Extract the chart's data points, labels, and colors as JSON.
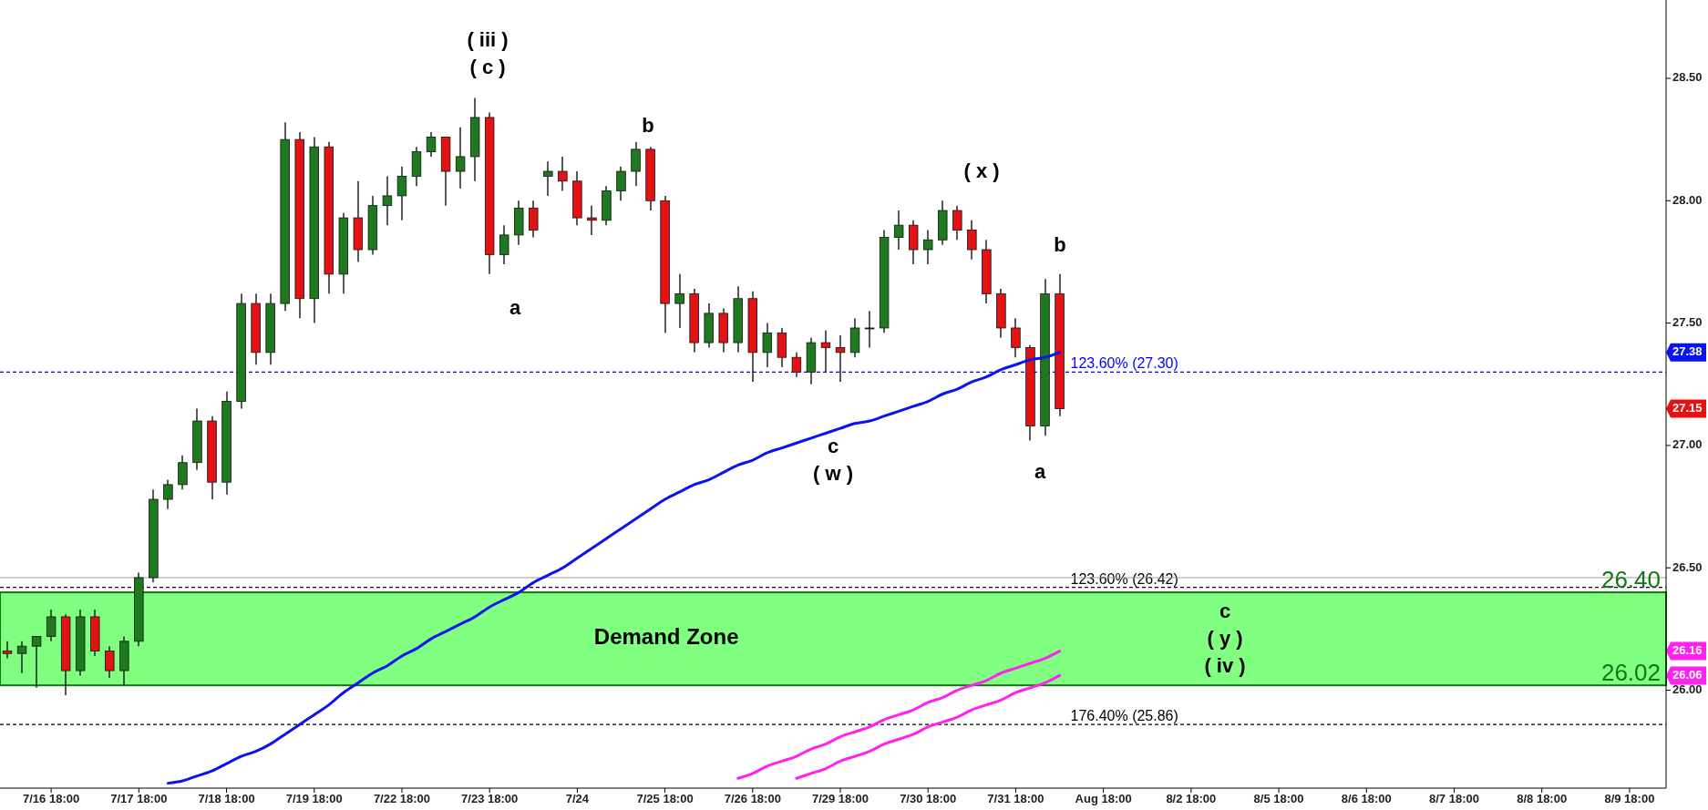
{
  "chart_data": {
    "type": "candlestick",
    "categories": [
      null,
      null,
      null,
      "7/16 18:00",
      null,
      null,
      null,
      null,
      null,
      "7/17 18:00",
      null,
      null,
      null,
      null,
      null,
      "7/18 18:00",
      null,
      null,
      null,
      null,
      null,
      "7/19 18:00",
      null,
      null,
      null,
      null,
      null,
      "7/22 18:00",
      null,
      null,
      null,
      null,
      null,
      "7/23 18:00",
      null,
      null,
      null,
      null,
      null,
      "7/24",
      null,
      null,
      null,
      null,
      null,
      "7/25 18:00",
      null,
      null,
      null,
      null,
      null,
      "7/26 18:00",
      null,
      null,
      null,
      null,
      null,
      "7/29 18:00",
      null,
      null,
      null,
      null,
      null,
      "7/30 18:00",
      null,
      null,
      null,
      null,
      null,
      "7/31 18:00",
      null,
      null,
      null,
      null,
      null,
      "Aug 18:00",
      null,
      null,
      null,
      null,
      null,
      "8/2 18:00",
      null,
      null,
      null,
      null,
      null,
      "8/5 18:00",
      null,
      null,
      null,
      null,
      null,
      "8/6 18:00",
      null,
      null,
      null,
      null,
      null,
      "8/7 18:00",
      null,
      null,
      null,
      null,
      null,
      "8/8 18:00",
      null,
      null,
      null,
      null,
      null,
      "8/9 18:00",
      null,
      null
    ],
    "ohlc": [
      [
        26.16,
        26.2,
        26.13,
        26.15
      ],
      [
        26.15,
        26.2,
        26.07,
        26.18
      ],
      [
        26.18,
        26.22,
        26.01,
        26.22
      ],
      [
        26.22,
        26.33,
        26.2,
        26.3
      ],
      [
        26.3,
        26.31,
        25.98,
        26.08
      ],
      [
        26.08,
        26.33,
        26.06,
        26.3
      ],
      [
        26.3,
        26.33,
        26.14,
        26.16
      ],
      [
        26.16,
        26.18,
        26.05,
        26.08
      ],
      [
        26.08,
        26.22,
        26.02,
        26.2
      ],
      [
        26.2,
        26.48,
        26.18,
        26.46
      ],
      [
        26.46,
        26.82,
        26.44,
        26.78
      ],
      [
        26.78,
        26.86,
        26.74,
        26.84
      ],
      [
        26.84,
        26.96,
        26.82,
        26.93
      ],
      [
        26.93,
        27.15,
        26.9,
        27.1
      ],
      [
        27.1,
        27.12,
        26.78,
        26.85
      ],
      [
        26.85,
        27.22,
        26.8,
        27.18
      ],
      [
        27.18,
        27.62,
        27.15,
        27.58
      ],
      [
        27.58,
        27.62,
        27.33,
        27.38
      ],
      [
        27.38,
        27.62,
        27.33,
        27.58
      ],
      [
        27.58,
        28.32,
        27.55,
        28.25
      ],
      [
        28.25,
        28.28,
        27.52,
        27.6
      ],
      [
        27.6,
        28.26,
        27.5,
        28.22
      ],
      [
        28.22,
        28.24,
        27.62,
        27.7
      ],
      [
        27.7,
        27.95,
        27.62,
        27.93
      ],
      [
        27.93,
        28.08,
        27.75,
        27.8
      ],
      [
        27.8,
        28.02,
        27.78,
        27.98
      ],
      [
        27.98,
        28.1,
        27.9,
        28.02
      ],
      [
        28.02,
        28.14,
        27.92,
        28.1
      ],
      [
        28.1,
        28.22,
        28.06,
        28.2
      ],
      [
        28.2,
        28.28,
        28.18,
        28.26
      ],
      [
        28.26,
        28.26,
        27.98,
        28.12
      ],
      [
        28.12,
        28.3,
        28.05,
        28.18
      ],
      [
        28.18,
        28.42,
        28.08,
        28.34
      ],
      [
        28.34,
        28.36,
        27.7,
        27.78
      ],
      [
        27.78,
        27.9,
        27.74,
        27.86
      ],
      [
        27.86,
        28.0,
        27.82,
        27.97
      ],
      [
        27.97,
        28.0,
        27.85,
        27.88
      ],
      [
        28.1,
        28.16,
        28.02,
        28.12
      ],
      [
        28.12,
        28.18,
        28.04,
        28.08
      ],
      [
        28.08,
        28.12,
        27.9,
        27.93
      ],
      [
        27.93,
        27.98,
        27.86,
        27.92
      ],
      [
        27.92,
        28.06,
        27.9,
        28.04
      ],
      [
        28.04,
        28.14,
        28.0,
        28.12
      ],
      [
        28.12,
        28.24,
        28.06,
        28.21
      ],
      [
        28.21,
        28.22,
        27.96,
        28.0
      ],
      [
        28.0,
        28.02,
        27.46,
        27.58
      ],
      [
        27.58,
        27.7,
        27.48,
        27.62
      ],
      [
        27.62,
        27.64,
        27.38,
        27.42
      ],
      [
        27.42,
        27.58,
        27.4,
        27.54
      ],
      [
        27.54,
        27.56,
        27.38,
        27.42
      ],
      [
        27.42,
        27.65,
        27.38,
        27.6
      ],
      [
        27.6,
        27.63,
        27.26,
        27.38
      ],
      [
        27.38,
        27.5,
        27.32,
        27.46
      ],
      [
        27.46,
        27.48,
        27.32,
        27.36
      ],
      [
        27.36,
        27.38,
        27.28,
        27.3
      ],
      [
        27.3,
        27.44,
        27.25,
        27.42
      ],
      [
        27.42,
        27.47,
        27.3,
        27.4
      ],
      [
        27.4,
        27.45,
        27.26,
        27.38
      ],
      [
        27.38,
        27.52,
        27.36,
        27.48
      ],
      [
        27.48,
        27.55,
        27.4,
        27.48
      ],
      [
        27.48,
        27.88,
        27.46,
        27.85
      ],
      [
        27.85,
        27.96,
        27.8,
        27.9
      ],
      [
        27.9,
        27.92,
        27.74,
        27.8
      ],
      [
        27.8,
        27.88,
        27.74,
        27.84
      ],
      [
        27.84,
        28.0,
        27.82,
        27.96
      ],
      [
        27.96,
        27.98,
        27.84,
        27.88
      ],
      [
        27.88,
        27.92,
        27.76,
        27.8
      ],
      [
        27.8,
        27.84,
        27.58,
        27.62
      ],
      [
        27.62,
        27.64,
        27.44,
        27.48
      ],
      [
        27.48,
        27.52,
        27.36,
        27.4
      ],
      [
        27.4,
        27.41,
        27.02,
        27.08
      ],
      [
        27.08,
        27.68,
        27.04,
        27.62
      ],
      [
        27.62,
        27.7,
        27.12,
        27.15
      ],
      null,
      null,
      null,
      null,
      null,
      null,
      null,
      null,
      null,
      null,
      null,
      null,
      null,
      null,
      null,
      null,
      null,
      null,
      null,
      null,
      null,
      null,
      null,
      null,
      null,
      null,
      null,
      null,
      null,
      null,
      null,
      null,
      null,
      null,
      null,
      null,
      null,
      null,
      null,
      null,
      null
    ],
    "series": [
      {
        "type": "line",
        "color": "#0a14f0",
        "values": [
          null,
          null,
          null,
          null,
          null,
          null,
          null,
          null,
          null,
          null,
          null,
          25.62,
          25.63,
          25.65,
          25.67,
          25.7,
          25.73,
          25.75,
          25.78,
          25.82,
          25.86,
          25.9,
          25.94,
          25.99,
          26.03,
          26.07,
          26.1,
          26.14,
          26.17,
          26.21,
          26.24,
          26.27,
          26.3,
          26.34,
          26.37,
          26.4,
          26.44,
          26.47,
          26.5,
          26.54,
          26.58,
          26.62,
          26.66,
          26.7,
          26.74,
          26.78,
          26.81,
          26.84,
          26.86,
          26.89,
          26.92,
          26.94,
          26.97,
          26.99,
          27.01,
          27.03,
          27.05,
          27.07,
          27.09,
          27.1,
          27.12,
          27.14,
          27.16,
          27.18,
          27.21,
          27.23,
          27.26,
          27.28,
          27.31,
          27.33,
          27.35,
          27.36,
          27.38,
          null,
          null,
          null,
          null,
          null,
          null,
          null,
          null,
          null,
          null,
          null,
          null,
          null,
          null,
          null,
          null,
          null,
          null,
          null,
          null,
          null,
          null,
          null,
          null,
          null,
          null,
          null,
          null,
          null,
          null,
          null,
          null,
          null,
          null,
          null,
          null,
          null,
          null,
          null,
          null,
          null
        ]
      },
      {
        "type": "line",
        "color": "#ff22ee",
        "values": [
          null,
          null,
          null,
          null,
          null,
          null,
          null,
          null,
          null,
          null,
          null,
          null,
          null,
          null,
          null,
          null,
          null,
          null,
          null,
          null,
          null,
          null,
          null,
          null,
          null,
          null,
          null,
          null,
          null,
          null,
          null,
          null,
          null,
          null,
          null,
          null,
          null,
          null,
          null,
          null,
          null,
          null,
          null,
          null,
          null,
          null,
          null,
          null,
          null,
          null,
          25.64,
          25.66,
          25.69,
          25.71,
          25.73,
          25.76,
          25.78,
          25.81,
          25.83,
          25.85,
          25.88,
          25.9,
          25.92,
          25.95,
          25.97,
          26.0,
          26.02,
          26.04,
          26.07,
          26.09,
          26.11,
          26.13,
          26.16,
          null,
          null,
          null,
          null,
          null,
          null,
          null,
          null,
          null,
          null,
          null,
          null,
          null,
          null,
          null,
          null,
          null,
          null,
          null,
          null,
          null,
          null,
          null,
          null,
          null,
          null,
          null,
          null,
          null,
          null,
          null,
          null,
          null,
          null,
          null,
          null,
          null,
          null,
          null,
          null,
          null
        ]
      },
      {
        "type": "line",
        "color": "#ff22ee",
        "values": [
          null,
          null,
          null,
          null,
          null,
          null,
          null,
          null,
          null,
          null,
          null,
          null,
          null,
          null,
          null,
          null,
          null,
          null,
          null,
          null,
          null,
          null,
          null,
          null,
          null,
          null,
          null,
          null,
          null,
          null,
          null,
          null,
          null,
          null,
          null,
          null,
          null,
          null,
          null,
          null,
          null,
          null,
          null,
          null,
          null,
          null,
          null,
          null,
          null,
          null,
          null,
          null,
          null,
          null,
          25.64,
          25.66,
          25.68,
          25.71,
          25.73,
          25.75,
          25.78,
          25.8,
          25.82,
          25.85,
          25.87,
          25.89,
          25.92,
          25.94,
          25.96,
          25.99,
          26.01,
          26.03,
          26.06,
          null,
          null,
          null,
          null,
          null,
          null,
          null,
          null,
          null,
          null,
          null,
          null,
          null,
          null,
          null,
          null,
          null,
          null,
          null,
          null,
          null,
          null,
          null,
          null,
          null,
          null,
          null,
          null,
          null,
          null,
          null,
          null,
          null,
          null,
          null,
          null,
          null,
          null,
          null,
          null,
          null
        ]
      }
    ],
    "ylim": [
      25.6,
      28.82
    ],
    "yticks": [
      {
        "value": 26,
        "label": "26.00"
      },
      {
        "value": 26.5,
        "label": "26.50"
      },
      {
        "value": 27,
        "label": "27.00"
      },
      {
        "value": 27.5,
        "label": "27.50"
      },
      {
        "value": 28,
        "label": "28.00"
      },
      {
        "value": 28.5,
        "label": "28.50"
      }
    ],
    "bands": [
      {
        "axis": "y",
        "from": 26.02,
        "to": 26.4,
        "label": "Demand Zone",
        "color": "#80ff80"
      }
    ],
    "ref_lines": [
      {
        "axis": "y",
        "value": 27.3,
        "label": "123.60% (27.30)",
        "color": "#0000ff",
        "line_style": "dashed"
      },
      {
        "axis": "y",
        "value": 26.42,
        "label": "123.60% (26.42)",
        "color": "#000000",
        "line_style": "dashed"
      },
      {
        "axis": "y",
        "value": 25.86,
        "label": "176.40% (25.86)",
        "color": "#000000",
        "line_style": "dashed"
      },
      {
        "axis": "y",
        "value": 26.46,
        "color": "#a0a0a0",
        "line_style": "solid"
      }
    ],
    "annotations": [
      "( iii )\n( c )",
      "a",
      "b",
      "c\n( w )",
      "( x )",
      "b",
      "a",
      "c\n( y )\n( iv )",
      {
        "text": "26.40",
        "y": 26.4
      },
      {
        "text": "26.02",
        "y": 26.02
      },
      {
        "text": "27.38",
        "y": 27.38
      },
      {
        "text": "27.15",
        "y": 27.15
      },
      {
        "text": "26.16",
        "y": 26.16
      },
      {
        "text": "26.06",
        "y": 26.06
      }
    ]
  }
}
